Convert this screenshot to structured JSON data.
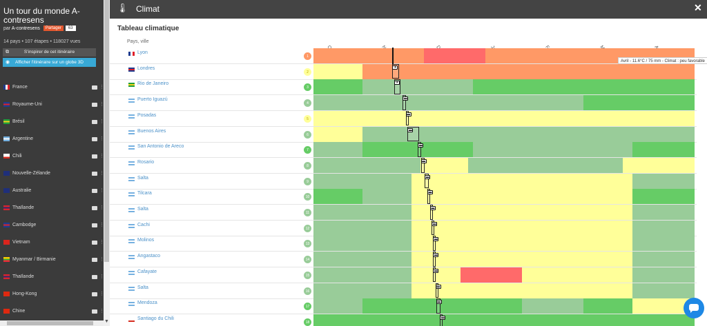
{
  "sidebar": {
    "title": "Un tour du monde A-contresens",
    "by_prefix": "par",
    "author": "A-contresens",
    "share_label": "Partager",
    "share_count": "63",
    "stats": "14 pays • 107 étapes • 118027 vues",
    "inspire_label": "S'inspirer de cet itinéraire",
    "globe_label": "Afficher l'itinéraire sur un globe 3D",
    "countries": [
      {
        "name": "France",
        "flag": [
          "#1f3c8f",
          "#ffffff",
          "#e0202a"
        ]
      },
      {
        "name": "Royaume-Uni",
        "flag": [
          "#1f3c8f",
          "#e0202a",
          "#1f3c8f"
        ]
      },
      {
        "name": "Brésil",
        "flag": [
          "#1f9e3a",
          "#f4d21d",
          "#1f9e3a"
        ]
      },
      {
        "name": "Argentine",
        "flag": [
          "#75b0e0",
          "#ffffff",
          "#75b0e0"
        ]
      },
      {
        "name": "Chili",
        "flag": [
          "#ffffff",
          "#ffffff",
          "#d52b1e"
        ]
      },
      {
        "name": "Nouvelle-Zélande",
        "flag": [
          "#1f2f7a",
          "#1f2f7a",
          "#1f2f7a"
        ]
      },
      {
        "name": "Australie",
        "flag": [
          "#1f2f7a",
          "#1f2f7a",
          "#1f2f7a"
        ]
      },
      {
        "name": "Thaïlande",
        "flag": [
          "#d8242e",
          "#2a2a6f",
          "#d8242e"
        ]
      },
      {
        "name": "Cambodge",
        "flag": [
          "#1f3c8f",
          "#d8242e",
          "#1f3c8f"
        ]
      },
      {
        "name": "Vietnam",
        "flag": [
          "#da251d",
          "#da251d",
          "#da251d"
        ]
      },
      {
        "name": "Myanmar / Birmanie",
        "flag": [
          "#fecb00",
          "#34b233",
          "#ea2839"
        ]
      },
      {
        "name": "Thaïlande",
        "flag": [
          "#d8242e",
          "#2a2a6f",
          "#d8242e"
        ]
      },
      {
        "name": "Hong-Kong",
        "flag": [
          "#de2910",
          "#de2910",
          "#de2910"
        ]
      },
      {
        "name": "Chine",
        "flag": [
          "#de2910",
          "#de2910",
          "#de2910"
        ]
      }
    ]
  },
  "header": {
    "title": "Climat",
    "icon": "thermometer-icon"
  },
  "table": {
    "title": "Tableau climatique",
    "col_header": "Pays, ville",
    "months": [
      "Oct.",
      "Nov.",
      "Déc.",
      "Janv.",
      "Févr.",
      "Mars",
      "Avr."
    ],
    "tooltip": "Avril - 11.6°C / 75 mm - Climat : peu favorable",
    "colors": {
      "r": "#ff6a6a",
      "o": "#ff9966",
      "y": "#ffff99",
      "l": "#99cc99",
      "g": "#66cc66"
    },
    "rows": [
      {
        "city": "Lyon",
        "num": "1",
        "badge": "#ff9966",
        "flag": [
          "#1f3c8f",
          "#ffffff",
          "#e0202a"
        ],
        "cells": "ooooooooorrrrrooooooooooooooooo"
      },
      {
        "city": "Londres",
        "num": "2",
        "badge": "#ffff99",
        "flag": [
          "#1f3c8f",
          "#e0202a",
          "#1f3c8f"
        ],
        "cells": "yyyyooooooooooooooooooooooooooo"
      },
      {
        "city": "Rio de Janeiro",
        "num": "3",
        "badge": "#66cc66",
        "flag": [
          "#1f9e3a",
          "#f4d21d",
          "#1f9e3a"
        ],
        "cells": "gggglllllllllgggggggggggggggggg"
      },
      {
        "city": "Puerto Iguazú",
        "num": "4",
        "badge": "#99cc99",
        "flag": [
          "#75b0e0",
          "#ffffff",
          "#75b0e0"
        ],
        "cells": "llllllllllllllllllllllggggggggg"
      },
      {
        "city": "Posadas",
        "num": "5",
        "badge": "#ffff99",
        "flag": [
          "#75b0e0",
          "#ffffff",
          "#75b0e0"
        ],
        "cells": "yyyyyyyyyyyyyyyyyyyyyyyyyyyyyyy"
      },
      {
        "city": "Buenos Aires",
        "num": "6",
        "badge": "#99cc99",
        "flag": [
          "#75b0e0",
          "#ffffff",
          "#75b0e0"
        ],
        "cells": "yyyylllllllllllllllllllllllllll"
      },
      {
        "city": "San Antonio de Areco",
        "num": "7",
        "badge": "#66cc66",
        "flag": [
          "#75b0e0",
          "#ffffff",
          "#75b0e0"
        ],
        "cells": "llllggggggggglllllllllllllggggg"
      },
      {
        "city": "Rosario",
        "num": "8",
        "badge": "#99cc99",
        "flag": [
          "#75b0e0",
          "#ffffff",
          "#75b0e0"
        ],
        "cells": "lllllllllyyyylllllllllllllyyyyyy"
      },
      {
        "city": "Salta",
        "num": "9",
        "badge": "#99cc99",
        "flag": [
          "#75b0e0",
          "#ffffff",
          "#75b0e0"
        ],
        "cells": "llllllllyyyyyyyyyyyyyyyyyylllll"
      },
      {
        "city": "Tilcara",
        "num": "10",
        "badge": "#99cc99",
        "flag": [
          "#75b0e0",
          "#ffffff",
          "#75b0e0"
        ],
        "cells": "ggggllllyyyyyyyyyyyyyyyyyyggggg"
      },
      {
        "city": "Salta",
        "num": "11",
        "badge": "#99cc99",
        "flag": [
          "#75b0e0",
          "#ffffff",
          "#75b0e0"
        ],
        "cells": "llllllllyyyyyyyyyyyyyyyyyylllll"
      },
      {
        "city": "Cachi",
        "num": "12",
        "badge": "#99cc99",
        "flag": [
          "#75b0e0",
          "#ffffff",
          "#75b0e0"
        ],
        "cells": "llllllllyyyyyyyyyyyyyyyyyylllll"
      },
      {
        "city": "Molinos",
        "num": "13",
        "badge": "#99cc99",
        "flag": [
          "#75b0e0",
          "#ffffff",
          "#75b0e0"
        ],
        "cells": "llllllllyyyyyyyyyyyyyyyyyylllll"
      },
      {
        "city": "Angastaco",
        "num": "14",
        "badge": "#99cc99",
        "flag": [
          "#75b0e0",
          "#ffffff",
          "#75b0e0"
        ],
        "cells": "llllllllyyyyyyyyyyyyyyyyyylllll"
      },
      {
        "city": "Cafayate",
        "num": "15",
        "badge": "#99cc99",
        "flag": [
          "#75b0e0",
          "#ffffff",
          "#75b0e0"
        ],
        "cells": "llllllllyyyyrrrrryyyyyyyyylllll"
      },
      {
        "city": "Salta",
        "num": "16",
        "badge": "#99cc99",
        "flag": [
          "#75b0e0",
          "#ffffff",
          "#75b0e0"
        ],
        "cells": "llllllllyyyyyyyyyyyyyyyyyylllll"
      },
      {
        "city": "Mendoza",
        "num": "17",
        "badge": "#66cc66",
        "flag": [
          "#75b0e0",
          "#ffffff",
          "#75b0e0"
        ],
        "cells": "llllggggggggggggglllllggggyyyyy"
      },
      {
        "city": "Santiago du Chili",
        "num": "18",
        "badge": "#66cc66",
        "flag": [
          "#ffffff",
          "#ffffff",
          "#d52b1e"
        ],
        "cells": "ggggggggggggggggggggggggggggggg"
      }
    ],
    "route": [
      {
        "x": 0.095,
        "w": 0.0
      },
      {
        "x": 0.095,
        "w": 0.018,
        "marker": "plane-icon"
      },
      {
        "x": 0.1,
        "w": 0.016,
        "marker": "plane-icon"
      },
      {
        "x": 0.122,
        "w": 0.008,
        "marker": "bus-icon"
      },
      {
        "x": 0.13,
        "w": 0.005,
        "marker": "bus-icon"
      },
      {
        "x": 0.135,
        "w": 0.03,
        "marker": "bus-icon"
      },
      {
        "x": 0.162,
        "w": 0.008,
        "marker": "bus-icon"
      },
      {
        "x": 0.17,
        "w": 0.01,
        "marker": "bus-icon"
      },
      {
        "x": 0.18,
        "w": 0.01,
        "marker": "bus-icon"
      },
      {
        "x": 0.187,
        "w": 0.008,
        "marker": "bus-icon"
      },
      {
        "x": 0.194,
        "w": 0.004,
        "marker": "bus-icon"
      },
      {
        "x": 0.198,
        "w": 0.006,
        "marker": "bus-icon"
      },
      {
        "x": 0.202,
        "w": 0.006,
        "marker": "bus-icon"
      },
      {
        "x": 0.202,
        "w": 0.004,
        "marker": "bus-icon"
      },
      {
        "x": 0.202,
        "w": 0.006,
        "marker": "bus-icon"
      },
      {
        "x": 0.208,
        "w": 0.006,
        "marker": "bus-icon"
      },
      {
        "x": 0.21,
        "w": 0.012,
        "marker": "bus-icon"
      },
      {
        "x": 0.22,
        "w": 0.006,
        "marker": "bus-icon"
      }
    ]
  }
}
